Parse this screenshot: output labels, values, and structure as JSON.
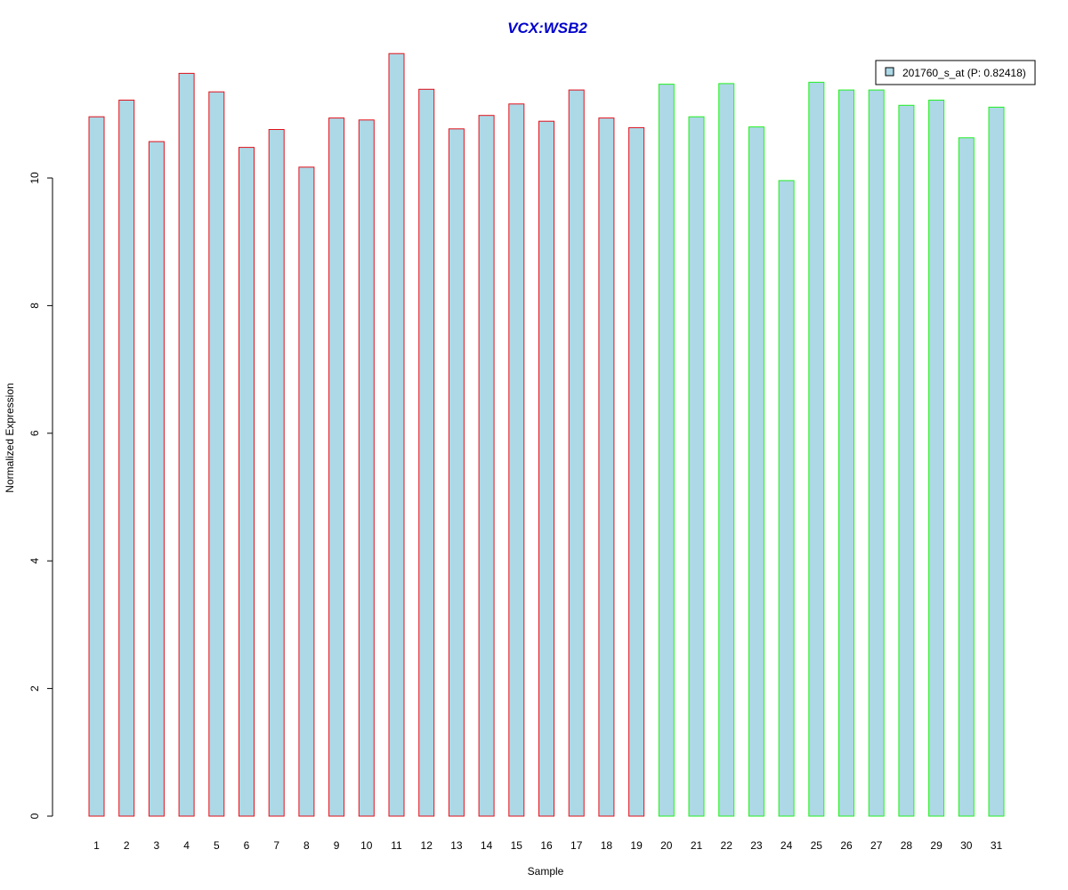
{
  "chart_data": {
    "type": "bar",
    "title": "VCX:WSB2",
    "xlabel": "Sample",
    "ylabel": "Normalized Expression",
    "categories": [
      "1",
      "2",
      "3",
      "4",
      "5",
      "6",
      "7",
      "8",
      "9",
      "10",
      "11",
      "12",
      "13",
      "14",
      "15",
      "16",
      "17",
      "18",
      "19",
      "20",
      "21",
      "22",
      "23",
      "24",
      "25",
      "26",
      "27",
      "28",
      "29",
      "30",
      "31"
    ],
    "series": [
      {
        "name": "201760_s_at (P: 0.82418)",
        "values": [
          10.96,
          11.22,
          10.57,
          11.64,
          11.35,
          10.48,
          10.76,
          10.17,
          10.94,
          10.91,
          11.95,
          11.39,
          10.77,
          10.98,
          11.16,
          10.89,
          11.38,
          10.94,
          10.79,
          11.47,
          10.96,
          11.48,
          10.8,
          9.96,
          11.5,
          11.38,
          11.38,
          11.14,
          11.22,
          10.63,
          11.11
        ]
      }
    ],
    "groups": [
      {
        "from": 1,
        "to": 19,
        "border_color": "#e0111b"
      },
      {
        "from": 20,
        "to": 31,
        "border_color": "#22ee22"
      }
    ],
    "bar_fill": "#add8e6",
    "title_color": "#0000cc",
    "yticks": [
      "0",
      "2",
      "4",
      "6",
      "8",
      "10"
    ],
    "ylim": [
      0,
      12.4
    ],
    "legend_position": "top-right",
    "grid": false
  }
}
